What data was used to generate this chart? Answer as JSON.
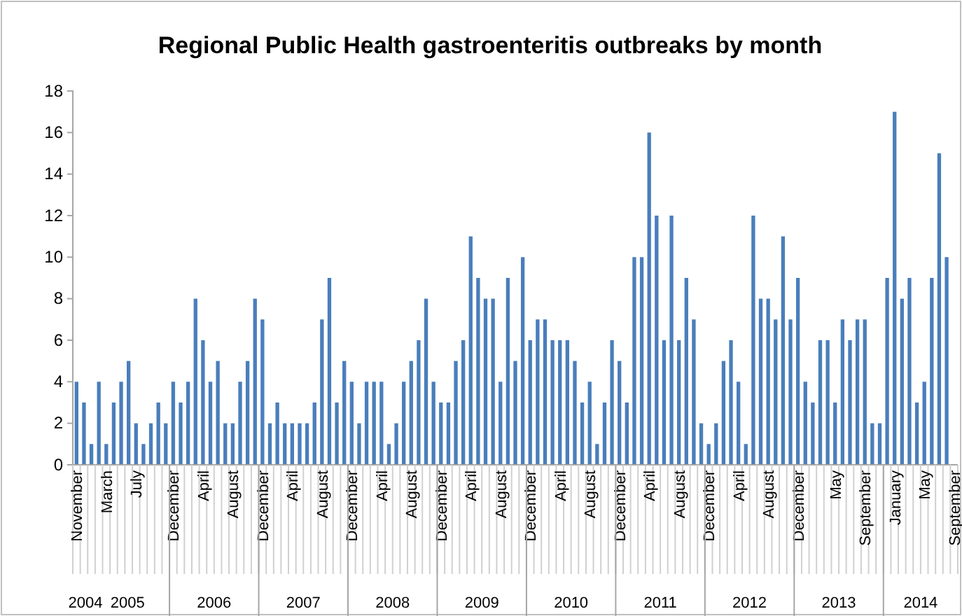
{
  "chart_data": {
    "type": "bar",
    "title": "Regional Public Health gastroenteritis outbreaks by month",
    "categories": [
      "November",
      null,
      null,
      null,
      "March",
      null,
      null,
      null,
      "July",
      null,
      null,
      null,
      null,
      "December",
      null,
      null,
      null,
      "April",
      null,
      null,
      null,
      "August",
      null,
      null,
      null,
      "December",
      null,
      null,
      null,
      "April",
      null,
      null,
      null,
      "August",
      null,
      null,
      null,
      "December",
      null,
      null,
      null,
      "April",
      null,
      null,
      null,
      "August",
      null,
      null,
      null,
      "December",
      null,
      null,
      null,
      "April",
      null,
      null,
      null,
      "August",
      null,
      null,
      null,
      "December",
      null,
      null,
      null,
      "April",
      null,
      null,
      null,
      "August",
      null,
      null,
      null,
      "December",
      null,
      null,
      null,
      "April",
      null,
      null,
      null,
      "August",
      null,
      null,
      null,
      "December",
      null,
      null,
      null,
      "April",
      null,
      null,
      null,
      "August",
      null,
      null,
      null,
      "December",
      null,
      null,
      null,
      null,
      "May",
      null,
      null,
      null,
      "September",
      null,
      null,
      null,
      "January",
      null,
      null,
      null,
      "May",
      null,
      null,
      null,
      "September"
    ],
    "values": [
      4,
      3,
      1,
      4,
      1,
      3,
      4,
      5,
      2,
      1,
      2,
      3,
      2,
      4,
      3,
      4,
      8,
      6,
      4,
      5,
      2,
      2,
      4,
      5,
      8,
      7,
      2,
      3,
      2,
      2,
      2,
      2,
      3,
      7,
      9,
      3,
      5,
      4,
      2,
      4,
      4,
      4,
      1,
      2,
      4,
      5,
      6,
      8,
      4,
      3,
      3,
      5,
      6,
      11,
      9,
      8,
      8,
      4,
      9,
      5,
      10,
      6,
      7,
      7,
      6,
      6,
      6,
      5,
      3,
      4,
      1,
      3,
      6,
      5,
      3,
      10,
      10,
      16,
      12,
      6,
      12,
      6,
      9,
      7,
      2,
      1,
      2,
      5,
      6,
      4,
      1,
      12,
      8,
      8,
      7,
      11,
      7,
      9,
      4,
      3,
      6,
      6,
      3,
      7,
      6,
      7,
      7,
      2,
      2,
      9,
      17,
      8,
      9,
      3,
      4,
      9,
      15,
      10,
      null
    ],
    "color": "#4a7ebb",
    "ylim": [
      0,
      18
    ],
    "yticks": [
      0,
      2,
      4,
      6,
      8,
      10,
      12,
      14,
      16,
      18
    ],
    "grid": false,
    "annotations": [
      "2004",
      "2005",
      "2006",
      "2007",
      "2008",
      "2009",
      "2010",
      "2011",
      "2012",
      "2013",
      "2014"
    ]
  }
}
